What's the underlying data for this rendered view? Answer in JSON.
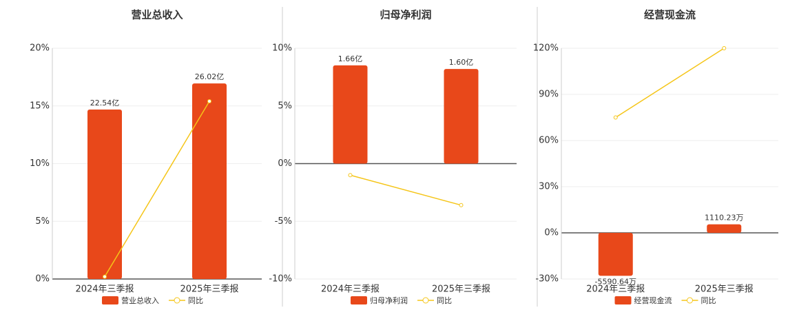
{
  "chart_data": [
    {
      "type": "bar",
      "title": "营业总收入",
      "categories": [
        "2024年三季报",
        "2025年三季报"
      ],
      "ylim": [
        0,
        20
      ],
      "yticks": [
        {
          "value": 0,
          "label": "0%"
        },
        {
          "value": 5,
          "label": "5%"
        },
        {
          "value": 10,
          "label": "10%"
        },
        {
          "value": 15,
          "label": "15%"
        },
        {
          "value": 20,
          "label": "20%"
        }
      ],
      "y2lim": [
        0,
        30.7
      ],
      "grid": true,
      "series": [
        {
          "name": "营业总收入",
          "type": "bar",
          "axis": "y2",
          "color": "#e8481a",
          "values": [
            22.54,
            26.02
          ],
          "value_labels": [
            "22.54亿",
            "26.02亿"
          ]
        },
        {
          "name": "同比",
          "type": "line",
          "color": "#f5c518",
          "values": [
            0.2,
            15.4
          ]
        }
      ]
    },
    {
      "type": "bar",
      "title": "归母净利润",
      "categories": [
        "2024年三季报",
        "2025年三季报"
      ],
      "ylim": [
        -10,
        10
      ],
      "yticks": [
        {
          "value": -10,
          "label": "-10%"
        },
        {
          "value": -5,
          "label": "-5%"
        },
        {
          "value": 0,
          "label": "0%"
        },
        {
          "value": 5,
          "label": "5%"
        },
        {
          "value": 10,
          "label": "10%"
        }
      ],
      "y2lim": [
        -1.95,
        1.95
      ],
      "grid": true,
      "series": [
        {
          "name": "归母净利润",
          "type": "bar",
          "axis": "y2",
          "color": "#e8481a",
          "values": [
            1.66,
            1.6
          ],
          "value_labels": [
            "1.66亿",
            "1.60亿"
          ]
        },
        {
          "name": "同比",
          "type": "line",
          "color": "#f5c518",
          "values": [
            -1.0,
            -3.6
          ]
        }
      ]
    },
    {
      "type": "bar",
      "title": "经营现金流",
      "categories": [
        "2024年三季报",
        "2025年三季报"
      ],
      "ylim": [
        -30,
        120
      ],
      "yticks": [
        {
          "value": -30,
          "label": "-30%"
        },
        {
          "value": 0,
          "label": "0%"
        },
        {
          "value": 30,
          "label": "30%"
        },
        {
          "value": 60,
          "label": "60%"
        },
        {
          "value": 90,
          "label": "90%"
        },
        {
          "value": 120,
          "label": "120%"
        }
      ],
      "y2lim": [
        -6000,
        24000
      ],
      "grid": true,
      "series": [
        {
          "name": "经营现金流",
          "type": "bar",
          "axis": "y2",
          "color": "#e8481a",
          "values": [
            -5590.64,
            1110.23
          ],
          "value_labels": [
            "-5590.64万",
            "1110.23万"
          ]
        },
        {
          "name": "同比",
          "type": "line",
          "color": "#f5c518",
          "values": [
            75,
            120
          ]
        }
      ]
    }
  ]
}
